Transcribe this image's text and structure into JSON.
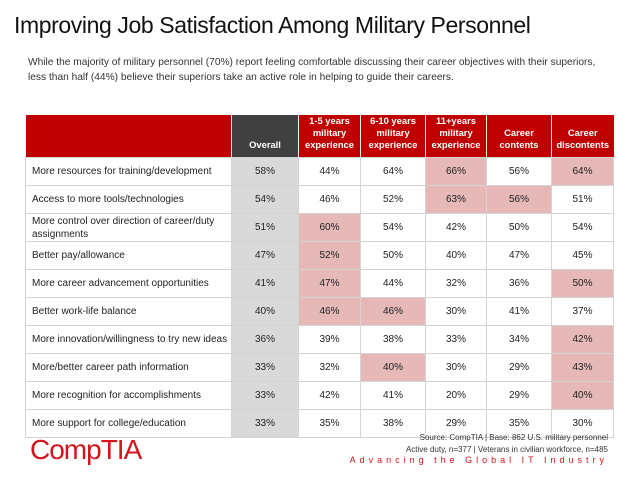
{
  "title": "Improving Job Satisfaction Among Military Personnel",
  "subtitle": "While the majority of military personnel (70%) report feeling comfortable discussing their career objectives with their superiors, less than half (44%) believe their superiors take an active role in helping to guide their careers.",
  "colors": {
    "header": "#c00000",
    "overall_header": "#404040",
    "overall_cell": "#d9d9d9",
    "highlight": "#e6b8b8",
    "brand": "#d4141c"
  },
  "table": {
    "headers": [
      "",
      "Overall",
      "1-5 years military experience",
      "6-10 years military experience",
      "11+years military experience",
      "Career contents",
      "Career discontents"
    ],
    "rows": [
      {
        "label": "More resources for training/development",
        "values": [
          "58%",
          "44%",
          "64%",
          "66%",
          "56%",
          "64%"
        ],
        "highlight": [
          false,
          false,
          false,
          true,
          false,
          true
        ]
      },
      {
        "label": "Access to more tools/technologies",
        "values": [
          "54%",
          "46%",
          "52%",
          "63%",
          "56%",
          "51%"
        ],
        "highlight": [
          false,
          false,
          false,
          true,
          true,
          false
        ]
      },
      {
        "label": "More control over direction of career/duty assignments",
        "values": [
          "51%",
          "60%",
          "54%",
          "42%",
          "50%",
          "54%"
        ],
        "highlight": [
          false,
          true,
          false,
          false,
          false,
          false
        ]
      },
      {
        "label": "Better pay/allowance",
        "values": [
          "47%",
          "52%",
          "50%",
          "40%",
          "47%",
          "45%"
        ],
        "highlight": [
          false,
          true,
          false,
          false,
          false,
          false
        ]
      },
      {
        "label": "More career advancement opportunities",
        "values": [
          "41%",
          "47%",
          "44%",
          "32%",
          "36%",
          "50%"
        ],
        "highlight": [
          false,
          true,
          false,
          false,
          false,
          true
        ]
      },
      {
        "label": "Better work-life balance",
        "values": [
          "40%",
          "46%",
          "46%",
          "30%",
          "41%",
          "37%"
        ],
        "highlight": [
          false,
          true,
          true,
          false,
          false,
          false
        ]
      },
      {
        "label": "More innovation/willingness to try new ideas",
        "values": [
          "36%",
          "39%",
          "38%",
          "33%",
          "34%",
          "42%"
        ],
        "highlight": [
          false,
          false,
          false,
          false,
          false,
          true
        ]
      },
      {
        "label": "More/better career path information",
        "values": [
          "33%",
          "32%",
          "40%",
          "30%",
          "29%",
          "43%"
        ],
        "highlight": [
          false,
          false,
          true,
          false,
          false,
          true
        ]
      },
      {
        "label": "More recognition for accomplishments",
        "values": [
          "33%",
          "42%",
          "41%",
          "20%",
          "29%",
          "40%"
        ],
        "highlight": [
          false,
          false,
          false,
          false,
          false,
          true
        ]
      },
      {
        "label": "More support for college/education",
        "values": [
          "33%",
          "35%",
          "38%",
          "29%",
          "35%",
          "30%"
        ],
        "highlight": [
          false,
          false,
          false,
          false,
          false,
          false
        ]
      }
    ]
  },
  "source_line1": "Source: CompTIA | Base: 862 U.S. military personnel",
  "source_line2": "Active duty, n=377 | Veterans in civilian workforce, n=485",
  "tagline": "Advancing the Global IT Industry",
  "logo": "CompTIA"
}
